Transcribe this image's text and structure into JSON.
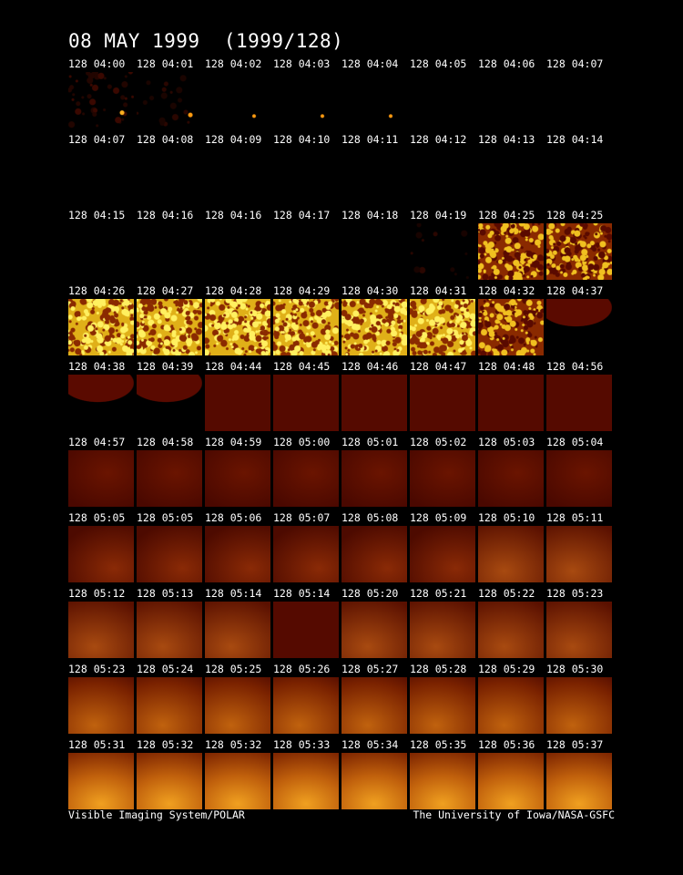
{
  "title": "08 MAY 1999  (1999/128)",
  "footer_left": "Visible Imaging System/POLAR",
  "footer_right": "The University of Iowa/NASA-GSFC",
  "rows": [
    [
      "128 04:00",
      "128 04:01",
      "128 04:02",
      "128 04:03",
      "128 04:04",
      "128 04:05",
      "128 04:06",
      "128 04:07"
    ],
    [
      "128 04:07",
      "128 04:08",
      "128 04:09",
      "128 04:10",
      "128 04:11",
      "128 04:12",
      "128 04:13",
      "128 04:14"
    ],
    [
      "128 04:15",
      "128 04:16",
      "128 04:16",
      "128 04:17",
      "128 04:18",
      "128 04:19",
      "128 04:25",
      "128 04:25"
    ],
    [
      "128 04:26",
      "128 04:27",
      "128 04:28",
      "128 04:29",
      "128 04:30",
      "128 04:31",
      "128 04:32",
      "128 04:37"
    ],
    [
      "128 04:38",
      "128 04:39",
      "128 04:44",
      "128 04:45",
      "128 04:46",
      "128 04:47",
      "128 04:48",
      "128 04:56"
    ],
    [
      "128 04:57",
      "128 04:58",
      "128 04:59",
      "128 05:00",
      "128 05:01",
      "128 05:02",
      "128 05:03",
      "128 05:04"
    ],
    [
      "128 05:05",
      "128 05:05",
      "128 05:06",
      "128 05:07",
      "128 05:08",
      "128 05:09",
      "128 05:10",
      "128 05:11"
    ],
    [
      "128 05:12",
      "128 05:13",
      "128 05:14",
      "128 05:14",
      "128 05:20",
      "128 05:21",
      "128 05:22",
      "128 05:23"
    ],
    [
      "128 05:23",
      "128 05:24",
      "128 05:25",
      "128 05:26",
      "128 05:27",
      "128 05:28",
      "128 05:29",
      "128 05:30"
    ],
    [
      "128 05:31",
      "128 05:32",
      "128 05:32",
      "128 05:33",
      "128 05:34",
      "128 05:35",
      "128 05:36",
      "128 05:37"
    ]
  ],
  "frame_styles": [
    [
      "noise-dot",
      "sparse-dot",
      "dot",
      "dot",
      "dot",
      "dark",
      "dark",
      "dark"
    ],
    [
      "dark",
      "dark",
      "dark",
      "dark",
      "dark",
      "dark",
      "dark",
      "dark"
    ],
    [
      "dark",
      "dark",
      "dark",
      "dark",
      "dark",
      "faint",
      "speckle-red",
      "speckle-red"
    ],
    [
      "speckle-yellow",
      "speckle-yellow",
      "speckle-yellow",
      "speckle-yellow",
      "speckle-yellow",
      "speckle-yellow",
      "speckle-red",
      "limb"
    ],
    [
      "limb",
      "limb",
      "red-flat",
      "red-flat",
      "red-flat",
      "red-flat",
      "red-flat",
      "red-flat"
    ],
    [
      "red-dim",
      "red-dim",
      "red-dim",
      "red-dim",
      "red-dim",
      "red-dim",
      "red-dim",
      "red-dim"
    ],
    [
      "red-mid",
      "red-mid",
      "red-mid",
      "red-mid",
      "red-mid",
      "red-mid",
      "orange-low",
      "orange-low"
    ],
    [
      "orange-low",
      "orange-low",
      "orange-low",
      "red-flat",
      "orange-low",
      "orange-low",
      "orange-low",
      "orange-low"
    ],
    [
      "orange-mid",
      "orange-mid",
      "orange-mid",
      "orange-mid",
      "orange-mid",
      "orange-mid",
      "orange-mid",
      "orange-mid"
    ],
    [
      "orange-high",
      "orange-high",
      "orange-high",
      "orange-high",
      "orange-high",
      "orange-high",
      "orange-high",
      "orange-high"
    ]
  ],
  "colors": {
    "background": "#000000",
    "text": "#ffffff",
    "red_flat": "#5a0a00",
    "orange": "#c8620a",
    "yellow": "#f5d020"
  }
}
